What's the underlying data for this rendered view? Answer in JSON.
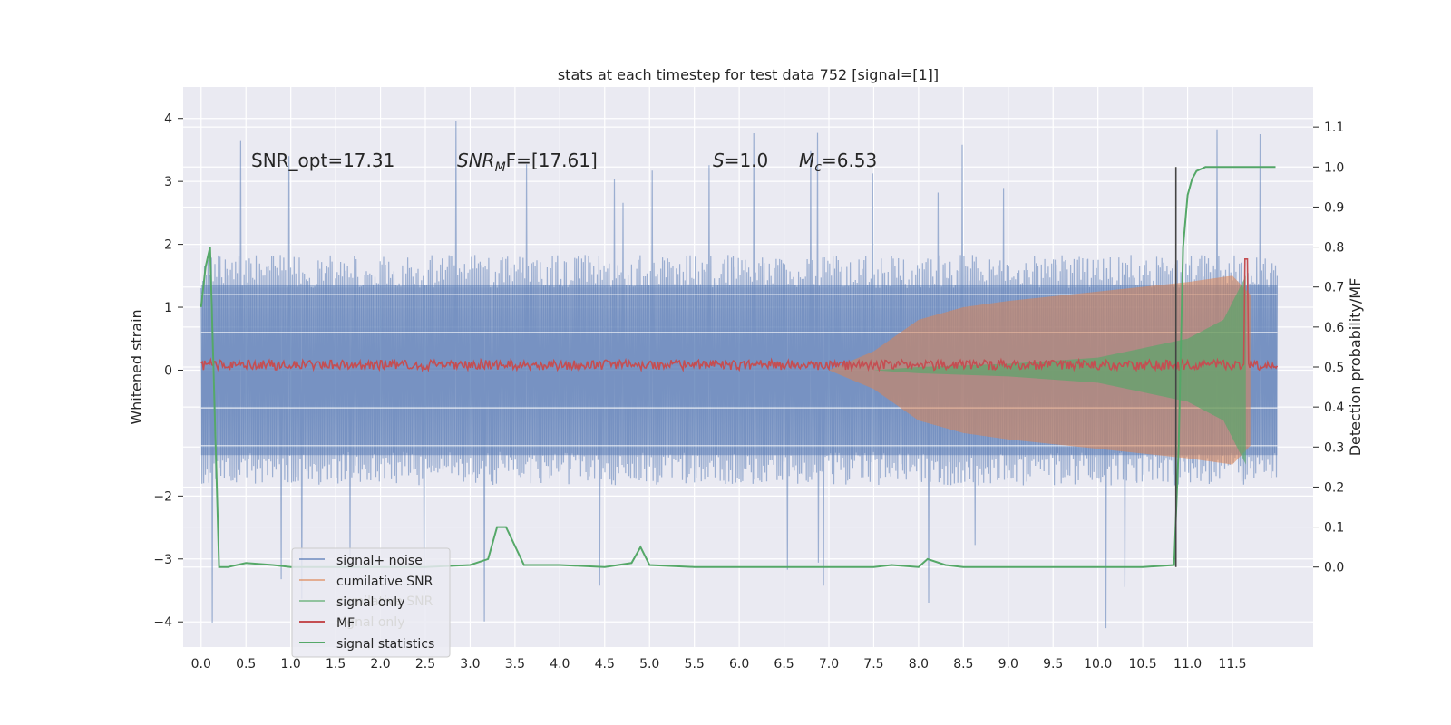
{
  "chart_data": {
    "type": "line",
    "title": "stats at each timestep for test data 752 [signal=[1]]",
    "ylabel": "Whitened strain",
    "ylabel_right": "Detection probability/MF",
    "xlabel": "",
    "xlim": [
      -0.2,
      12.4
    ],
    "ylim": [
      -4.4,
      4.5
    ],
    "ylim_right": [
      -0.2,
      1.2
    ],
    "grid": true,
    "x_ticks": [
      "0.0",
      "0.5",
      "1.0",
      "1.5",
      "2.0",
      "2.5",
      "3.0",
      "3.5",
      "4.0",
      "4.5",
      "5.0",
      "5.5",
      "6.0",
      "6.5",
      "7.0",
      "7.5",
      "8.0",
      "8.5",
      "9.0",
      "9.5",
      "10.0",
      "10.5",
      "11.0",
      "11.5"
    ],
    "y_ticks": [
      "4",
      "3",
      "2",
      "1",
      "0",
      "−2",
      "−3",
      "−4"
    ],
    "y_ticks_right": [
      "1.1",
      "1.0",
      "0.9",
      "0.8",
      "0.7",
      "0.6",
      "0.5",
      "0.4",
      "0.3",
      "0.2",
      "0.1",
      "0.0"
    ],
    "annotations": {
      "snr_opt": "SNR_opt=17.31",
      "snr_mf_prefix": "SNR",
      "snr_mf_sub": "M",
      "snr_mf_suffix": "F=[17.61]",
      "s_label": "S",
      "s_value": "=1.0",
      "mc_label": "M",
      "mc_sub": "c",
      "mc_value": "=6.53"
    },
    "legend_position": "lower-left",
    "legend": [
      {
        "label": "signal+ noise",
        "color": "#4c72b0"
      },
      {
        "label": "cumilative SNR",
        "color": "#dd8452"
      },
      {
        "label": "signal only",
        "color": "#55a868"
      },
      {
        "label": "MF",
        "color": "#c44e52"
      },
      {
        "label": "signal statistics",
        "color": "#55a868"
      }
    ],
    "legend_ghost": [
      {
        "label": "cumilative SNR"
      },
      {
        "label": "signal only"
      }
    ],
    "vertical_marker_x": 10.87,
    "series": [
      {
        "name": "signal+ noise",
        "color": "#4c72b0",
        "x_range": [
          0.0,
          12.0
        ],
        "upper_envelope_typical": 2.0,
        "lower_envelope_typical": -2.0,
        "extreme_peak": 4.1,
        "extreme_trough": -3.95
      },
      {
        "name": "cumilative SNR",
        "color": "#dd8452",
        "envelope": [
          [
            7.0,
            0.0
          ],
          [
            7.5,
            0.3
          ],
          [
            8.0,
            0.8
          ],
          [
            8.5,
            1.0
          ],
          [
            9.0,
            1.1
          ],
          [
            10.0,
            1.25
          ],
          [
            11.0,
            1.4
          ],
          [
            11.5,
            1.5
          ],
          [
            11.7,
            1.2
          ]
        ]
      },
      {
        "name": "signal only",
        "color": "#55a868",
        "envelope": [
          [
            7.5,
            0.0
          ],
          [
            8.0,
            0.05
          ],
          [
            9.0,
            0.1
          ],
          [
            10.0,
            0.2
          ],
          [
            10.5,
            0.35
          ],
          [
            11.0,
            0.5
          ],
          [
            11.4,
            0.8
          ],
          [
            11.65,
            1.5
          ]
        ]
      },
      {
        "name": "MF",
        "color": "#c44e52",
        "axis": "right",
        "baseline": 0.5,
        "spike": [
          11.65,
          0.77
        ]
      },
      {
        "name": "signal statistics",
        "color": "#55a868",
        "axis": "right",
        "x": [
          0.0,
          0.05,
          0.1,
          0.15,
          0.2,
          0.3,
          0.5,
          0.8,
          1.0,
          1.5,
          2.0,
          2.5,
          3.0,
          3.2,
          3.3,
          3.4,
          3.6,
          4.0,
          4.5,
          4.8,
          4.9,
          5.0,
          5.5,
          6.0,
          6.5,
          7.0,
          7.5,
          7.7,
          8.0,
          8.1,
          8.3,
          8.5,
          9.0,
          9.5,
          10.0,
          10.5,
          10.85,
          10.9,
          10.95,
          11.0,
          11.05,
          11.1,
          11.2,
          11.5,
          11.8,
          11.98
        ],
        "y": [
          0.65,
          0.75,
          0.8,
          0.4,
          0.0,
          0.0,
          0.01,
          0.005,
          0.0,
          0.0,
          0.0,
          0.0,
          0.005,
          0.02,
          0.1,
          0.1,
          0.005,
          0.005,
          0.0,
          0.01,
          0.05,
          0.005,
          0.0,
          0.0,
          0.0,
          0.0,
          0.0,
          0.005,
          0.0,
          0.02,
          0.005,
          0.0,
          0.0,
          0.0,
          0.0,
          0.0,
          0.005,
          0.3,
          0.8,
          0.93,
          0.97,
          0.99,
          1.0,
          1.0,
          1.0,
          1.0
        ]
      }
    ]
  }
}
